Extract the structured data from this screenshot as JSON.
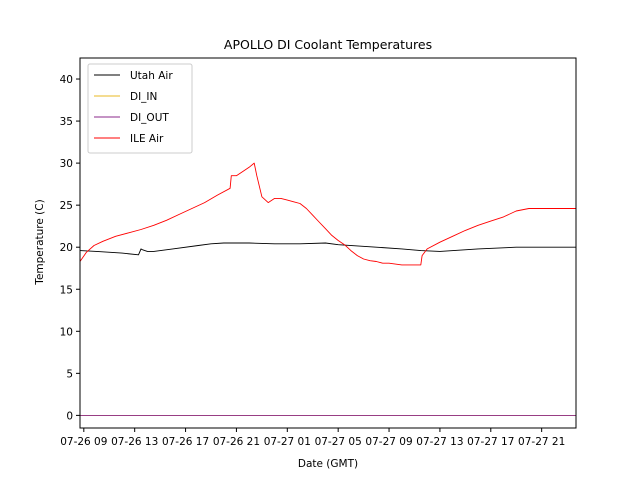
{
  "chart_data": {
    "type": "line",
    "title": "APOLLO DI Coolant Temperatures",
    "xlabel": "Date (GMT)",
    "ylabel": "Temperature (C)",
    "xlim": [
      8.7,
      47.7
    ],
    "ylim": [
      -1.5,
      42.5
    ],
    "yticks": [
      0,
      5,
      10,
      15,
      20,
      25,
      30,
      35,
      40
    ],
    "xticks": [
      {
        "label": "07-26 09",
        "hour": 9
      },
      {
        "label": "07-26 13",
        "hour": 13
      },
      {
        "label": "07-26 17",
        "hour": 17
      },
      {
        "label": "07-26 21",
        "hour": 21
      },
      {
        "label": "07-27 01",
        "hour": 25
      },
      {
        "label": "07-27 05",
        "hour": 29
      },
      {
        "label": "07-27 09",
        "hour": 33
      },
      {
        "label": "07-27 13",
        "hour": 37
      },
      {
        "label": "07-27 17",
        "hour": 41
      },
      {
        "label": "07-27 21",
        "hour": 45
      }
    ],
    "legend_position": "top-left",
    "series": [
      {
        "name": "Utah Air",
        "color": "#000000",
        "x": [
          8.7,
          10,
          12,
          13.3,
          13.5,
          13.6,
          14,
          14.5,
          16,
          18,
          19,
          20,
          22,
          24,
          26,
          28,
          29,
          32,
          34,
          35.5,
          37,
          40,
          43,
          47.7
        ],
        "y": [
          19.6,
          19.5,
          19.3,
          19.1,
          19.8,
          19.7,
          19.5,
          19.5,
          19.8,
          20.2,
          20.4,
          20.5,
          20.5,
          20.4,
          20.4,
          20.5,
          20.3,
          20.0,
          19.8,
          19.6,
          19.5,
          19.8,
          20.0,
          20.0
        ]
      },
      {
        "name": "DI_IN",
        "color": "#e8b923",
        "x": [
          8.7,
          47.7
        ],
        "y": [
          0,
          0
        ]
      },
      {
        "name": "DI_OUT",
        "color": "#8b2a8b",
        "x": [
          8.7,
          47.7
        ],
        "y": [
          0,
          0
        ]
      },
      {
        "name": "ILE Air",
        "color": "#ff0000",
        "x": [
          8.7,
          9.2,
          9.8,
          10.5,
          11.5,
          12.5,
          13.5,
          14.5,
          15.5,
          16.5,
          17.5,
          18.5,
          19.5,
          20.5,
          20.6,
          21.0,
          21.5,
          22.0,
          22.4,
          22.6,
          23.0,
          23.5,
          24.0,
          24.5,
          25.0,
          25.5,
          26.0,
          26.5,
          27.0,
          27.5,
          28.0,
          28.5,
          29.0,
          29.5,
          30.0,
          30.5,
          31.0,
          31.5,
          32.0,
          32.5,
          33.0,
          34.0,
          35.0,
          35.5,
          35.6,
          36.0,
          37.0,
          38.0,
          39.0,
          40.0,
          41.0,
          42.0,
          43.0,
          44.0,
          45.0,
          46.0,
          47.7
        ],
        "y": [
          18.3,
          19.4,
          20.2,
          20.7,
          21.3,
          21.7,
          22.1,
          22.6,
          23.2,
          23.9,
          24.6,
          25.3,
          26.2,
          27.0,
          28.5,
          28.5,
          29.0,
          29.5,
          30.0,
          28.5,
          26.0,
          25.3,
          25.8,
          25.8,
          25.6,
          25.4,
          25.2,
          24.6,
          23.8,
          23.0,
          22.2,
          21.4,
          20.8,
          20.3,
          19.6,
          19.0,
          18.6,
          18.4,
          18.3,
          18.1,
          18.1,
          17.9,
          17.9,
          17.9,
          19.0,
          19.8,
          20.6,
          21.3,
          22.0,
          22.6,
          23.1,
          23.6,
          24.3,
          24.6,
          24.6,
          24.6,
          24.6
        ]
      }
    ]
  }
}
